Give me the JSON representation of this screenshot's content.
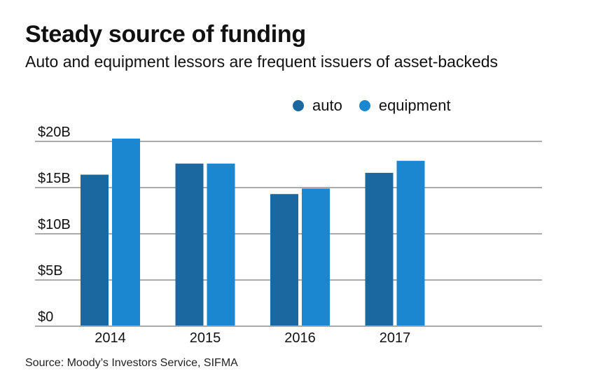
{
  "header": {
    "title": "Steady source of funding",
    "subtitle": "Auto and equipment lessors are frequent issuers of asset-backeds"
  },
  "source": "Source: Moody’s Investors Service, SIFMA",
  "colors": {
    "auto": "#1b679f",
    "equipment": "#1b87d1",
    "grid": "#aaaaaa"
  },
  "chart_data": {
    "type": "bar",
    "title": "Steady source of funding",
    "subtitle": "Auto and equipment lessors are frequent issuers of asset-backeds",
    "xlabel": "",
    "ylabel": "",
    "categories": [
      "2014",
      "2015",
      "2016",
      "2017"
    ],
    "series": [
      {
        "name": "auto",
        "values": [
          16.4,
          17.6,
          14.3,
          16.6
        ]
      },
      {
        "name": "equipment",
        "values": [
          20.3,
          17.6,
          14.9,
          17.9
        ]
      }
    ],
    "units": "billions USD",
    "ylim": [
      0,
      20
    ],
    "yticks": [
      0,
      5,
      10,
      15,
      20
    ],
    "ytick_labels": [
      "$0",
      "$5B",
      "$10B",
      "$15B",
      "$20B"
    ],
    "grid": true,
    "legend": {
      "position": "top-right",
      "entries": [
        "auto",
        "equipment"
      ]
    }
  }
}
